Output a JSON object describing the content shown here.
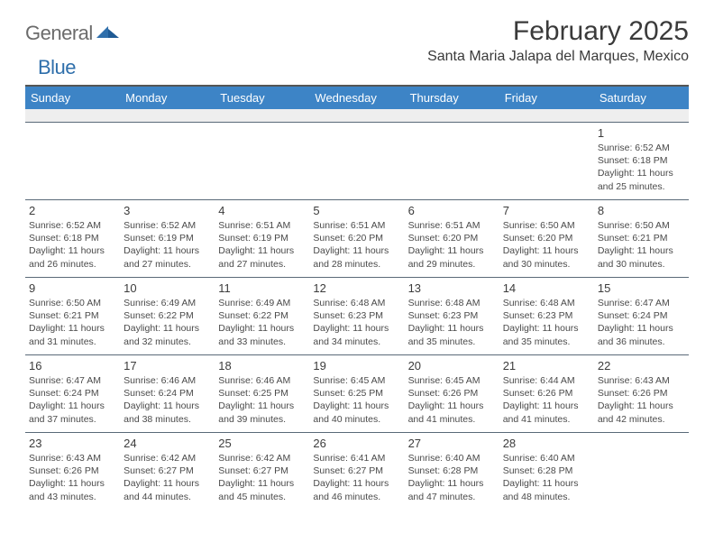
{
  "brand": {
    "part1": "General",
    "part2": "Blue"
  },
  "title": "February 2025",
  "location": "Santa Maria Jalapa del Marques, Mexico",
  "colors": {
    "header_bg": "#3d84c6",
    "header_fg": "#ffffff",
    "rule": "#5a6a78",
    "brand_gray": "#6b6b6b",
    "brand_blue": "#2f6fab"
  },
  "weekdays": [
    "Sunday",
    "Monday",
    "Tuesday",
    "Wednesday",
    "Thursday",
    "Friday",
    "Saturday"
  ],
  "weeks": [
    [
      null,
      null,
      null,
      null,
      null,
      null,
      {
        "n": "1",
        "sunrise": "Sunrise: 6:52 AM",
        "sunset": "Sunset: 6:18 PM",
        "day1": "Daylight: 11 hours",
        "day2": "and 25 minutes."
      }
    ],
    [
      {
        "n": "2",
        "sunrise": "Sunrise: 6:52 AM",
        "sunset": "Sunset: 6:18 PM",
        "day1": "Daylight: 11 hours",
        "day2": "and 26 minutes."
      },
      {
        "n": "3",
        "sunrise": "Sunrise: 6:52 AM",
        "sunset": "Sunset: 6:19 PM",
        "day1": "Daylight: 11 hours",
        "day2": "and 27 minutes."
      },
      {
        "n": "4",
        "sunrise": "Sunrise: 6:51 AM",
        "sunset": "Sunset: 6:19 PM",
        "day1": "Daylight: 11 hours",
        "day2": "and 27 minutes."
      },
      {
        "n": "5",
        "sunrise": "Sunrise: 6:51 AM",
        "sunset": "Sunset: 6:20 PM",
        "day1": "Daylight: 11 hours",
        "day2": "and 28 minutes."
      },
      {
        "n": "6",
        "sunrise": "Sunrise: 6:51 AM",
        "sunset": "Sunset: 6:20 PM",
        "day1": "Daylight: 11 hours",
        "day2": "and 29 minutes."
      },
      {
        "n": "7",
        "sunrise": "Sunrise: 6:50 AM",
        "sunset": "Sunset: 6:20 PM",
        "day1": "Daylight: 11 hours",
        "day2": "and 30 minutes."
      },
      {
        "n": "8",
        "sunrise": "Sunrise: 6:50 AM",
        "sunset": "Sunset: 6:21 PM",
        "day1": "Daylight: 11 hours",
        "day2": "and 30 minutes."
      }
    ],
    [
      {
        "n": "9",
        "sunrise": "Sunrise: 6:50 AM",
        "sunset": "Sunset: 6:21 PM",
        "day1": "Daylight: 11 hours",
        "day2": "and 31 minutes."
      },
      {
        "n": "10",
        "sunrise": "Sunrise: 6:49 AM",
        "sunset": "Sunset: 6:22 PM",
        "day1": "Daylight: 11 hours",
        "day2": "and 32 minutes."
      },
      {
        "n": "11",
        "sunrise": "Sunrise: 6:49 AM",
        "sunset": "Sunset: 6:22 PM",
        "day1": "Daylight: 11 hours",
        "day2": "and 33 minutes."
      },
      {
        "n": "12",
        "sunrise": "Sunrise: 6:48 AM",
        "sunset": "Sunset: 6:23 PM",
        "day1": "Daylight: 11 hours",
        "day2": "and 34 minutes."
      },
      {
        "n": "13",
        "sunrise": "Sunrise: 6:48 AM",
        "sunset": "Sunset: 6:23 PM",
        "day1": "Daylight: 11 hours",
        "day2": "and 35 minutes."
      },
      {
        "n": "14",
        "sunrise": "Sunrise: 6:48 AM",
        "sunset": "Sunset: 6:23 PM",
        "day1": "Daylight: 11 hours",
        "day2": "and 35 minutes."
      },
      {
        "n": "15",
        "sunrise": "Sunrise: 6:47 AM",
        "sunset": "Sunset: 6:24 PM",
        "day1": "Daylight: 11 hours",
        "day2": "and 36 minutes."
      }
    ],
    [
      {
        "n": "16",
        "sunrise": "Sunrise: 6:47 AM",
        "sunset": "Sunset: 6:24 PM",
        "day1": "Daylight: 11 hours",
        "day2": "and 37 minutes."
      },
      {
        "n": "17",
        "sunrise": "Sunrise: 6:46 AM",
        "sunset": "Sunset: 6:24 PM",
        "day1": "Daylight: 11 hours",
        "day2": "and 38 minutes."
      },
      {
        "n": "18",
        "sunrise": "Sunrise: 6:46 AM",
        "sunset": "Sunset: 6:25 PM",
        "day1": "Daylight: 11 hours",
        "day2": "and 39 minutes."
      },
      {
        "n": "19",
        "sunrise": "Sunrise: 6:45 AM",
        "sunset": "Sunset: 6:25 PM",
        "day1": "Daylight: 11 hours",
        "day2": "and 40 minutes."
      },
      {
        "n": "20",
        "sunrise": "Sunrise: 6:45 AM",
        "sunset": "Sunset: 6:26 PM",
        "day1": "Daylight: 11 hours",
        "day2": "and 41 minutes."
      },
      {
        "n": "21",
        "sunrise": "Sunrise: 6:44 AM",
        "sunset": "Sunset: 6:26 PM",
        "day1": "Daylight: 11 hours",
        "day2": "and 41 minutes."
      },
      {
        "n": "22",
        "sunrise": "Sunrise: 6:43 AM",
        "sunset": "Sunset: 6:26 PM",
        "day1": "Daylight: 11 hours",
        "day2": "and 42 minutes."
      }
    ],
    [
      {
        "n": "23",
        "sunrise": "Sunrise: 6:43 AM",
        "sunset": "Sunset: 6:26 PM",
        "day1": "Daylight: 11 hours",
        "day2": "and 43 minutes."
      },
      {
        "n": "24",
        "sunrise": "Sunrise: 6:42 AM",
        "sunset": "Sunset: 6:27 PM",
        "day1": "Daylight: 11 hours",
        "day2": "and 44 minutes."
      },
      {
        "n": "25",
        "sunrise": "Sunrise: 6:42 AM",
        "sunset": "Sunset: 6:27 PM",
        "day1": "Daylight: 11 hours",
        "day2": "and 45 minutes."
      },
      {
        "n": "26",
        "sunrise": "Sunrise: 6:41 AM",
        "sunset": "Sunset: 6:27 PM",
        "day1": "Daylight: 11 hours",
        "day2": "and 46 minutes."
      },
      {
        "n": "27",
        "sunrise": "Sunrise: 6:40 AM",
        "sunset": "Sunset: 6:28 PM",
        "day1": "Daylight: 11 hours",
        "day2": "and 47 minutes."
      },
      {
        "n": "28",
        "sunrise": "Sunrise: 6:40 AM",
        "sunset": "Sunset: 6:28 PM",
        "day1": "Daylight: 11 hours",
        "day2": "and 48 minutes."
      },
      null
    ]
  ]
}
